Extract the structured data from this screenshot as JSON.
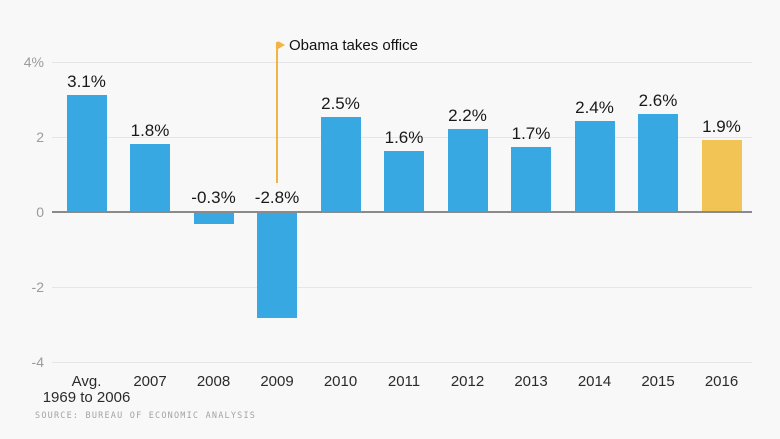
{
  "chart_data": {
    "type": "bar",
    "title": "",
    "xlabel": "",
    "ylabel": "",
    "categories": [
      "Avg.\n1969 to 2006",
      "2007",
      "2008",
      "2009",
      "2010",
      "2011",
      "2012",
      "2013",
      "2014",
      "2015",
      "2016"
    ],
    "values": [
      3.1,
      1.8,
      -0.3,
      -2.8,
      2.5,
      1.6,
      2.2,
      1.7,
      2.4,
      2.6,
      1.9
    ],
    "value_labels": [
      "3.1%",
      "1.8%",
      "-0.3%",
      "-2.8%",
      "2.5%",
      "1.6%",
      "2.2%",
      "1.7%",
      "2.4%",
      "2.6%",
      "1.9%"
    ],
    "bar_color": "#38a8e3",
    "highlight_index": 10,
    "highlight_color": "#f2c355",
    "ylim": [
      -4,
      4
    ],
    "grid": "horizontal",
    "legend": "none",
    "y_ticks": [
      {
        "value": 4,
        "label": "4%"
      },
      {
        "value": 2,
        "label": "2"
      },
      {
        "value": 0,
        "label": "0"
      },
      {
        "value": -2,
        "label": "-2"
      },
      {
        "value": -4,
        "label": "-4"
      }
    ],
    "annotation": {
      "text": "Obama takes office",
      "at_category": "2009",
      "color": "#f2b443"
    },
    "source": "SOURCE: BUREAU OF ECONOMIC ANALYSIS"
  }
}
